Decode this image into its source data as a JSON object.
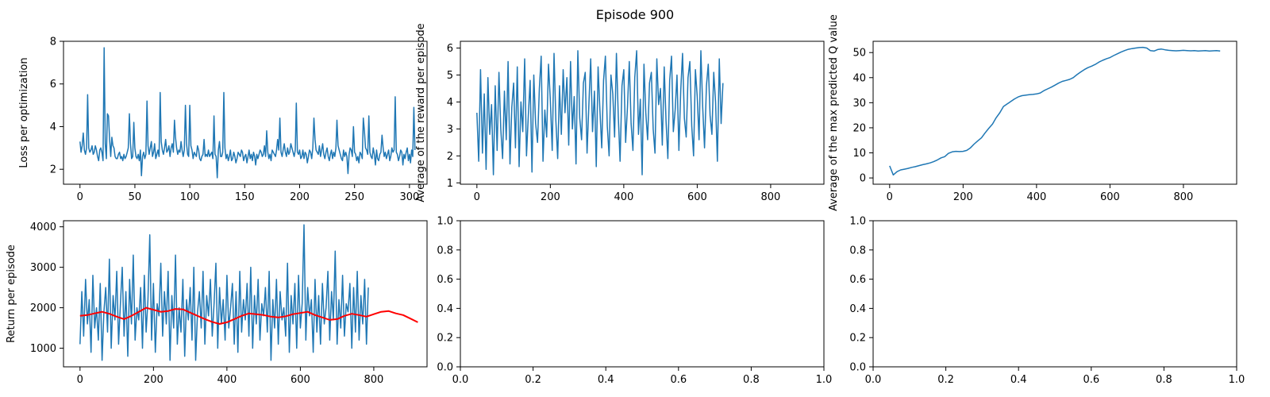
{
  "figure": {
    "suptitle": "Episode 900"
  },
  "chart_data": [
    {
      "id": "loss",
      "type": "line",
      "title": "",
      "xlabel": "",
      "ylabel": "Loss per optimization",
      "xlim": [
        -15,
        316
      ],
      "ylim": [
        1.3,
        8.0
      ],
      "xticks": [
        0,
        50,
        100,
        150,
        200,
        250,
        300
      ],
      "yticks": [
        2,
        4,
        6,
        8
      ],
      "grid": false,
      "series": [
        {
          "color": "#1f77b4",
          "x_start": 0,
          "x_step": 1,
          "values": [
            3.3,
            2.8,
            3.1,
            3.7,
            2.9,
            2.7,
            3.0,
            5.5,
            3.0,
            2.8,
            2.9,
            3.1,
            2.7,
            2.8,
            3.1,
            2.9,
            2.6,
            2.4,
            2.9,
            3.0,
            2.8,
            2.4,
            7.7,
            3.2,
            2.5,
            4.6,
            4.5,
            3.4,
            2.6,
            3.5,
            3.1,
            3.0,
            2.6,
            2.5,
            2.5,
            2.7,
            2.8,
            2.5,
            2.6,
            2.4,
            2.7,
            2.5,
            2.6,
            2.8,
            3.0,
            4.6,
            3.2,
            2.5,
            2.6,
            4.2,
            3.0,
            2.6,
            2.5,
            2.7,
            2.4,
            2.9,
            1.7,
            2.6,
            2.8,
            2.5,
            2.7,
            5.2,
            3.1,
            2.7,
            3.0,
            3.3,
            2.6,
            2.8,
            3.2,
            2.5,
            2.7,
            2.9,
            2.6,
            5.6,
            3.3,
            2.9,
            2.7,
            3.0,
            3.4,
            2.8,
            2.9,
            3.1,
            2.6,
            3.0,
            3.2,
            2.8,
            4.3,
            3.5,
            3.0,
            2.7,
            2.9,
            2.8,
            3.3,
            2.9,
            2.6,
            2.9,
            5.0,
            3.2,
            2.7,
            2.6,
            5.0,
            3.1,
            2.9,
            2.5,
            2.8,
            2.7,
            2.6,
            3.1,
            2.9,
            2.5,
            2.4,
            2.6,
            2.7,
            3.4,
            2.6,
            2.7,
            2.6,
            2.9,
            2.6,
            2.7,
            2.8,
            2.5,
            4.5,
            2.7,
            2.6,
            1.6,
            2.9,
            3.3,
            2.6,
            2.6,
            2.8,
            5.6,
            3.0,
            2.5,
            2.7,
            2.4,
            2.6,
            2.9,
            2.4,
            2.5,
            2.8,
            2.6,
            2.3,
            2.5,
            2.8,
            2.7,
            2.6,
            2.9,
            2.8,
            2.4,
            2.6,
            2.7,
            2.3,
            2.6,
            2.9,
            2.5,
            2.7,
            2.4,
            2.8,
            2.6,
            2.2,
            2.7,
            2.5,
            2.7,
            2.9,
            2.8,
            2.6,
            2.7,
            3.1,
            2.6,
            3.8,
            2.8,
            2.5,
            2.7,
            2.4,
            2.9,
            2.8,
            2.7,
            2.6,
            2.9,
            3.4,
            2.9,
            4.4,
            2.8,
            2.6,
            2.9,
            3.2,
            2.8,
            2.6,
            3.0,
            2.7,
            2.8,
            3.2,
            3.0,
            2.8,
            2.6,
            2.9,
            5.1,
            2.8,
            2.7,
            2.9,
            2.5,
            2.6,
            2.9,
            2.5,
            2.8,
            2.7,
            2.3,
            2.6,
            2.9,
            2.8,
            2.5,
            3.0,
            4.4,
            3.4,
            2.9,
            2.8,
            2.7,
            3.1,
            2.6,
            2.9,
            3.2,
            2.7,
            2.5,
            2.8,
            3.0,
            2.6,
            2.4,
            2.7,
            2.9,
            2.5,
            2.8,
            2.6,
            3.0,
            4.3,
            3.1,
            2.9,
            2.7,
            2.5,
            2.4,
            2.9,
            2.6,
            2.8,
            2.6,
            1.8,
            2.7,
            3.0,
            2.9,
            2.6,
            4.0,
            2.8,
            2.7,
            2.4,
            2.6,
            2.3,
            2.8,
            2.7,
            2.5,
            4.4,
            3.8,
            3.0,
            2.9,
            2.7,
            4.5,
            2.8,
            2.6,
            2.5,
            3.0,
            2.7,
            2.2,
            2.9,
            2.5,
            2.4,
            2.7,
            2.8,
            3.6,
            3.0,
            2.6,
            2.8,
            2.5,
            2.7,
            2.9,
            2.4,
            2.6,
            3.0,
            2.8,
            2.9,
            5.4,
            2.8,
            2.7,
            2.4,
            2.6,
            2.9,
            2.8,
            2.2,
            2.7,
            2.5,
            2.8,
            3.0,
            2.4,
            2.7,
            2.3,
            2.9,
            2.6,
            4.9,
            2.9
          ]
        }
      ]
    },
    {
      "id": "reward",
      "type": "line",
      "title": "",
      "xlabel": "",
      "ylabel": "Average of the reward per episode",
      "xlim": [
        -45,
        945
      ],
      "ylim": [
        0.95,
        6.25
      ],
      "xticks": [
        0,
        200,
        400,
        600,
        800
      ],
      "yticks": [
        1,
        2,
        3,
        4,
        5,
        6
      ],
      "grid": false,
      "series": [
        {
          "color": "#1f77b4",
          "x_start": 0,
          "x_step": 5,
          "values": [
            3.6,
            1.8,
            5.2,
            2.1,
            4.3,
            1.5,
            4.9,
            2.8,
            3.9,
            1.3,
            4.6,
            2.2,
            5.1,
            3.0,
            1.9,
            4.4,
            2.6,
            5.5,
            1.7,
            3.8,
            4.7,
            2.3,
            5.3,
            1.6,
            4.0,
            2.9,
            5.6,
            2.0,
            3.5,
            4.8,
            1.4,
            5.0,
            3.2,
            2.5,
            4.5,
            5.7,
            1.8,
            3.7,
            2.7,
            5.4,
            4.1,
            2.2,
            5.8,
            3.3,
            1.9,
            4.6,
            2.8,
            5.2,
            3.6,
            4.9,
            2.4,
            5.5,
            3.0,
            4.2,
            1.7,
            5.9,
            3.4,
            2.6,
            4.7,
            5.1,
            2.1,
            3.9,
            5.6,
            2.9,
            4.4,
            1.6,
            5.3,
            3.7,
            2.3,
            4.8,
            5.7,
            3.1,
            2.0,
            5.0,
            4.3,
            2.7,
            5.8,
            3.5,
            1.8,
            4.6,
            5.2,
            2.5,
            3.8,
            5.5,
            3.2,
            2.2,
            4.9,
            5.9,
            2.8,
            4.1,
            1.3,
            5.4,
            3.6,
            2.6,
            4.7,
            5.1,
            3.0,
            2.1,
            5.6,
            3.9,
            4.5,
            2.4,
            5.3,
            3.3,
            1.9,
            4.8,
            5.7,
            2.9,
            3.7,
            5.0,
            2.2,
            4.4,
            5.8,
            3.4,
            2.7,
            4.9,
            5.5,
            3.1,
            2.0,
            5.2,
            4.2,
            2.6,
            5.9,
            3.8,
            2.3,
            4.6,
            5.4,
            3.5,
            2.8,
            5.1,
            4.0,
            1.8,
            5.6,
            3.2,
            4.7
          ]
        }
      ]
    },
    {
      "id": "qvalue",
      "type": "line",
      "title": "",
      "xlabel": "",
      "ylabel": "Average of the max predicted Q value",
      "xlim": [
        -45,
        945
      ],
      "ylim": [
        -2.5,
        54.5
      ],
      "xticks": [
        0,
        200,
        400,
        600,
        800
      ],
      "yticks": [
        0,
        10,
        20,
        30,
        40,
        50
      ],
      "grid": false,
      "series": [
        {
          "color": "#1f77b4",
          "x_start": 0,
          "x_step": 10,
          "values": [
            4.8,
            1.2,
            2.5,
            3.2,
            3.5,
            3.8,
            4.2,
            4.5,
            4.9,
            5.3,
            5.6,
            6.0,
            6.5,
            7.2,
            8.0,
            8.5,
            9.8,
            10.4,
            10.6,
            10.5,
            10.6,
            11.0,
            12.0,
            13.5,
            14.8,
            16.0,
            18.0,
            19.8,
            21.5,
            24.0,
            26.0,
            28.5,
            29.5,
            30.5,
            31.5,
            32.3,
            32.8,
            33.0,
            33.2,
            33.3,
            33.5,
            33.9,
            34.8,
            35.5,
            36.2,
            37.0,
            37.8,
            38.5,
            38.9,
            39.3,
            40.0,
            41.2,
            42.2,
            43.2,
            44.0,
            44.6,
            45.3,
            46.2,
            46.9,
            47.5,
            48.0,
            48.8,
            49.5,
            50.2,
            50.8,
            51.3,
            51.6,
            51.8,
            52.0,
            52.1,
            51.8,
            50.8,
            50.6,
            51.2,
            51.4,
            51.1,
            50.9,
            50.8,
            50.7,
            50.8,
            50.9,
            50.8,
            50.7,
            50.8,
            50.6,
            50.7,
            50.8,
            50.6,
            50.7,
            50.8,
            50.6
          ]
        }
      ]
    },
    {
      "id": "return",
      "type": "line",
      "title": "",
      "xlabel": "",
      "ylabel": "Return per episode",
      "xlim": [
        -45,
        945
      ],
      "ylim": [
        540,
        4150
      ],
      "xticks": [
        0,
        200,
        400,
        600,
        800
      ],
      "yticks": [
        1000,
        2000,
        3000,
        4000
      ],
      "grid": false,
      "series": [
        {
          "color": "#1f77b4",
          "x_start": 0,
          "x_step": 5,
          "values": [
            1100,
            2400,
            1300,
            2700,
            1600,
            2200,
            900,
            2800,
            1500,
            2000,
            1200,
            2600,
            700,
            1900,
            2500,
            1400,
            3200,
            1000,
            2300,
            1700,
            2900,
            1100,
            2100,
            3000,
            1300,
            2400,
            800,
            2700,
            1600,
            3300,
            1200,
            2000,
            1700,
            2500,
            1000,
            2800,
            1400,
            2200,
            3800,
            1200,
            2600,
            900,
            2100,
            1800,
            3100,
            1300,
            2400,
            1600,
            2900,
            700,
            2300,
            1500,
            3300,
            1100,
            2000,
            1400,
            2700,
            800,
            2200,
            1700,
            2500,
            1200,
            3000,
            700,
            1900,
            2400,
            1500,
            2900,
            1100,
            2300,
            1800,
            2700,
            1300,
            2100,
            3100,
            1000,
            2500,
            1600,
            2200,
            1200,
            2800,
            1500,
            2000,
            2600,
            1100,
            2400,
            900,
            2900,
            1400,
            2200,
            1700,
            2600,
            1300,
            3000,
            1000,
            2300,
            1600,
            2700,
            1200,
            2100,
            1800,
            2500,
            1400,
            2900,
            700,
            2200,
            1500,
            2700,
            1100,
            2400,
            1700,
            2000,
            1300,
            3100,
            900,
            2300,
            1600,
            2600,
            1000,
            2800,
            1500,
            2100,
            4050,
            1200,
            2500,
            1800,
            2200,
            900,
            2700,
            1400,
            2300,
            1100,
            2600,
            1600,
            2000,
            2900,
            1200,
            2400,
            1700,
            3400,
            1100,
            2200,
            1500,
            2800,
            1300,
            2100,
            1900,
            2600,
            1000,
            2500,
            1400,
            2900,
            1200,
            2300,
            1600,
            2700,
            1100,
            2500
          ]
        },
        {
          "color": "#ff0000",
          "x_start": 0,
          "x_step": 20,
          "values": [
            1800,
            1820,
            1860,
            1900,
            1850,
            1780,
            1720,
            1800,
            1900,
            2000,
            1950,
            1900,
            1920,
            1970,
            1960,
            1880,
            1800,
            1720,
            1650,
            1600,
            1640,
            1720,
            1800,
            1860,
            1840,
            1820,
            1780,
            1760,
            1790,
            1840,
            1870,
            1900,
            1820,
            1760,
            1700,
            1720,
            1800,
            1850,
            1820,
            1780,
            1840,
            1900,
            1920,
            1860,
            1820,
            1730,
            1640
          ]
        }
      ]
    },
    {
      "id": "empty1",
      "type": "line",
      "title": "",
      "xlabel": "",
      "ylabel": "",
      "xlim": [
        0,
        1
      ],
      "ylim": [
        0,
        1
      ],
      "xticks": [
        0.0,
        0.2,
        0.4,
        0.6,
        0.8,
        1.0
      ],
      "yticks": [
        0.0,
        0.2,
        0.4,
        0.6,
        0.8,
        1.0
      ],
      "xtick_labels": [
        "0.0",
        "0.2",
        "0.4",
        "0.6",
        "0.8",
        "1.0"
      ],
      "ytick_labels": [
        "0.0",
        "0.2",
        "0.4",
        "0.6",
        "0.8",
        "1.0"
      ],
      "grid": false,
      "series": []
    },
    {
      "id": "empty2",
      "type": "line",
      "title": "",
      "xlabel": "",
      "ylabel": "",
      "xlim": [
        0,
        1
      ],
      "ylim": [
        0,
        1
      ],
      "xticks": [
        0.0,
        0.2,
        0.4,
        0.6,
        0.8,
        1.0
      ],
      "yticks": [
        0.0,
        0.2,
        0.4,
        0.6,
        0.8,
        1.0
      ],
      "xtick_labels": [
        "0.0",
        "0.2",
        "0.4",
        "0.6",
        "0.8",
        "1.0"
      ],
      "ytick_labels": [
        "0.0",
        "0.2",
        "0.4",
        "0.6",
        "0.8",
        "1.0"
      ],
      "grid": false,
      "series": []
    }
  ]
}
